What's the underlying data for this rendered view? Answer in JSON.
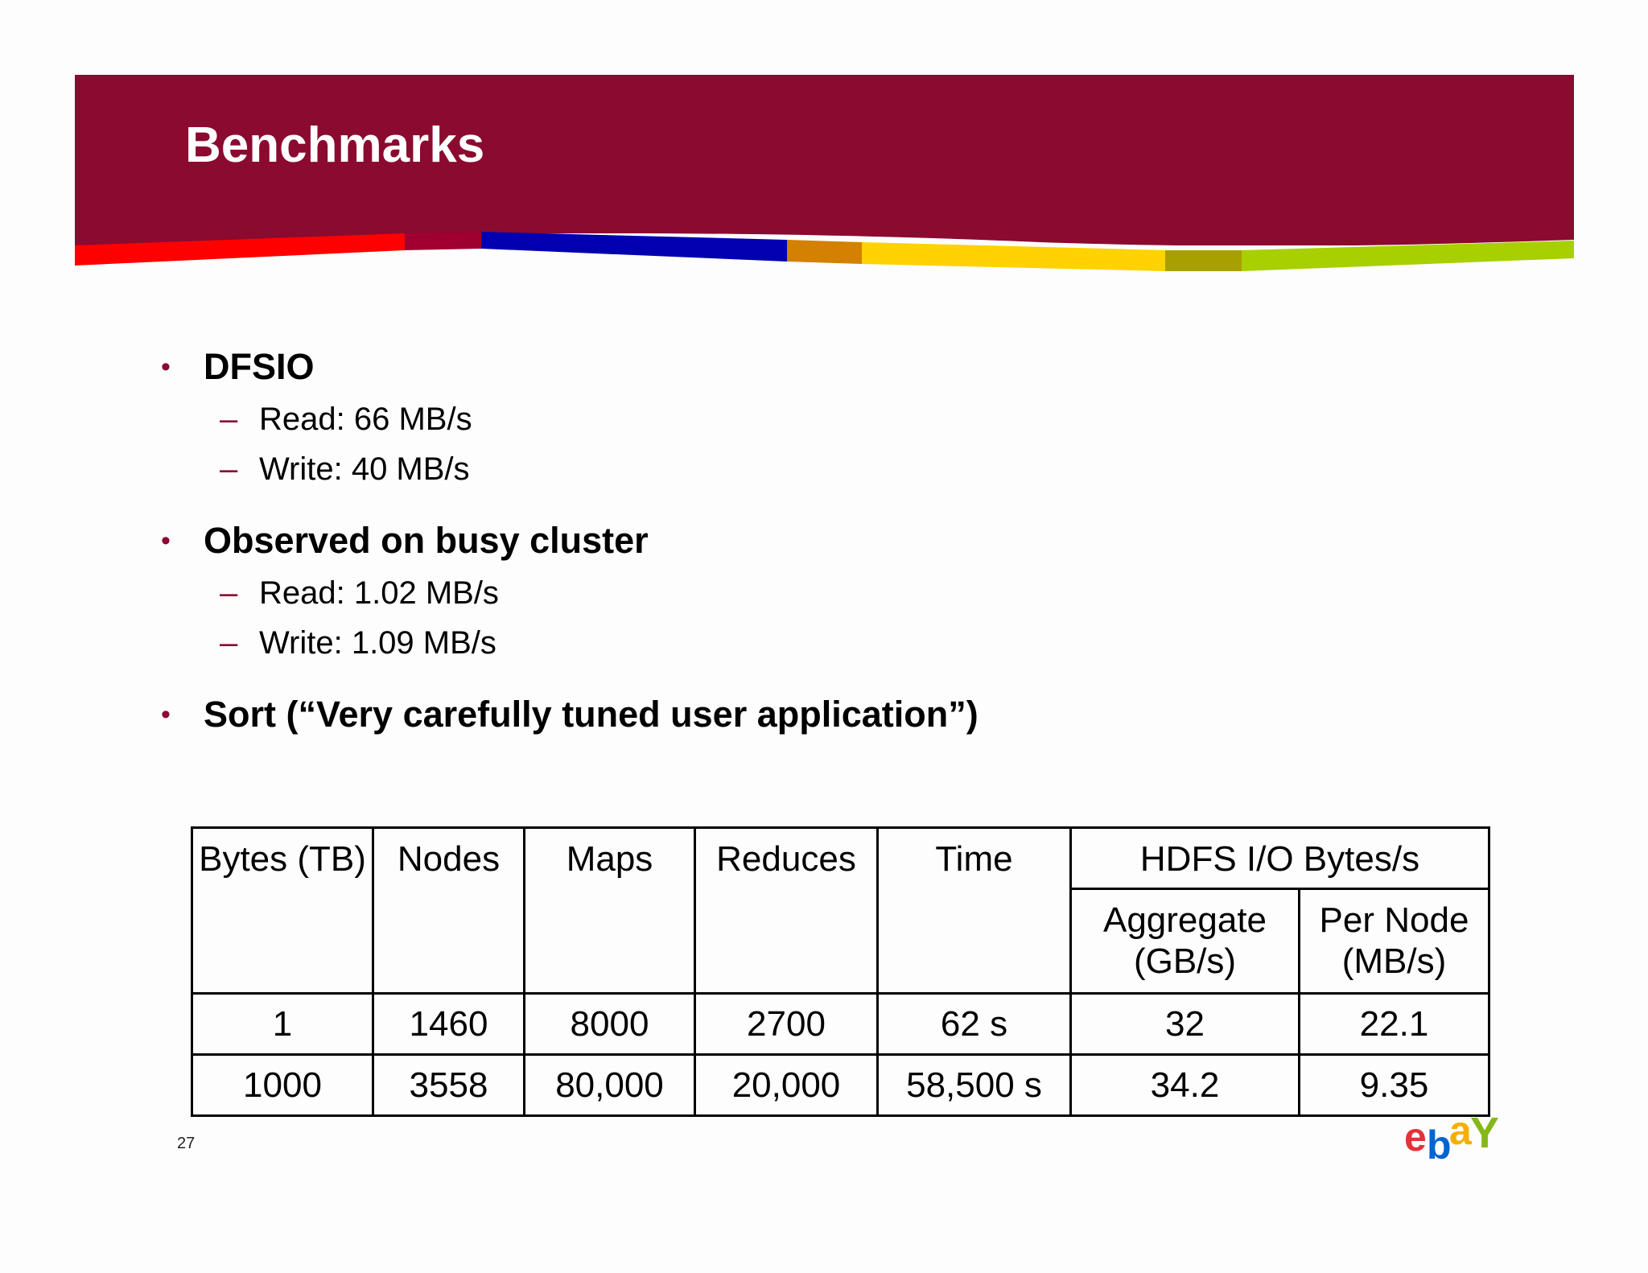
{
  "slide": {
    "title": "Benchmarks",
    "page_number": "27"
  },
  "bullets": [
    {
      "label": "DFSIO",
      "subitems": [
        "Read: 66 MB/s",
        "Write: 40 MB/s"
      ]
    },
    {
      "label": "Observed on busy cluster",
      "subitems": [
        "Read: 1.02 MB/s",
        "Write: 1.09 MB/s"
      ]
    },
    {
      "label": "Sort (“Very carefully tuned user application”)",
      "subitems": []
    }
  ],
  "table": {
    "headers": {
      "bytes": "Bytes (TB)",
      "nodes": "Nodes",
      "maps": "Maps",
      "reduces": "Reduces",
      "time": "Time",
      "hdfs_group": "HDFS I/O Bytes/s",
      "aggregate": "Aggregate (GB/s)",
      "per_node": "Per Node (MB/s)"
    },
    "rows": [
      [
        "1",
        "1460",
        "8000",
        "2700",
        "62 s",
        "32",
        "22.1"
      ],
      [
        "1000",
        "3558",
        "80,000",
        "20,000",
        "58,500 s",
        "34.2",
        "9.35"
      ]
    ]
  },
  "logo": {
    "text": "ebay",
    "letters": [
      "e",
      "b",
      "a",
      "Y"
    ],
    "colors": [
      "#e53238",
      "#0064d2",
      "#f5af02",
      "#86b817"
    ]
  },
  "theme": {
    "header_color": "#8b0a2f",
    "stripe_colors": [
      "#ff0000",
      "#a00030",
      "#0000b0",
      "#d48000",
      "#ffd200",
      "#a8a000",
      "#a8d000"
    ]
  }
}
